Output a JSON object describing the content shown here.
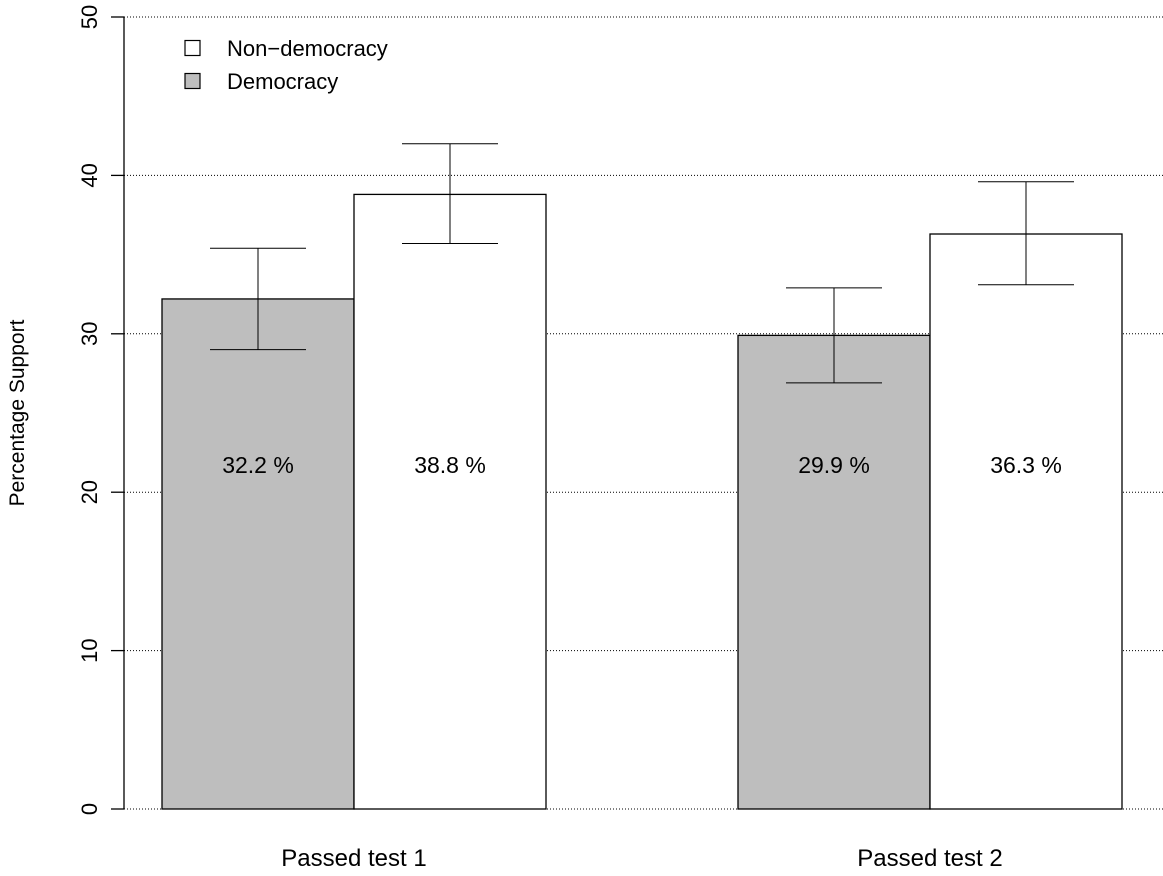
{
  "chart_data": {
    "type": "bar",
    "title": "",
    "xlabel": "",
    "ylabel": "Percentage Support",
    "ylim": [
      0,
      50
    ],
    "yticks": [
      0,
      10,
      20,
      30,
      40,
      50
    ],
    "grid": "horizontal dotted",
    "legend_position": "top-left",
    "categories": [
      "Passed test 1",
      "Passed test 2"
    ],
    "series": [
      {
        "name": "Democracy",
        "color": "#bebebe",
        "values": [
          32.2,
          29.9
        ],
        "error_low": [
          29.0,
          26.9
        ],
        "error_high": [
          35.4,
          32.9
        ],
        "labels": [
          "32.2 %",
          "29.9 %"
        ]
      },
      {
        "name": "Non−democracy",
        "color": "#ffffff",
        "values": [
          38.8,
          36.3
        ],
        "error_low": [
          35.7,
          33.1
        ],
        "error_high": [
          42.0,
          39.6
        ],
        "labels": [
          "38.8 %",
          "36.3 %"
        ]
      }
    ],
    "legend": [
      {
        "label": "Non−democracy",
        "color": "#ffffff"
      },
      {
        "label": "Democracy",
        "color": "#bebebe"
      }
    ]
  }
}
